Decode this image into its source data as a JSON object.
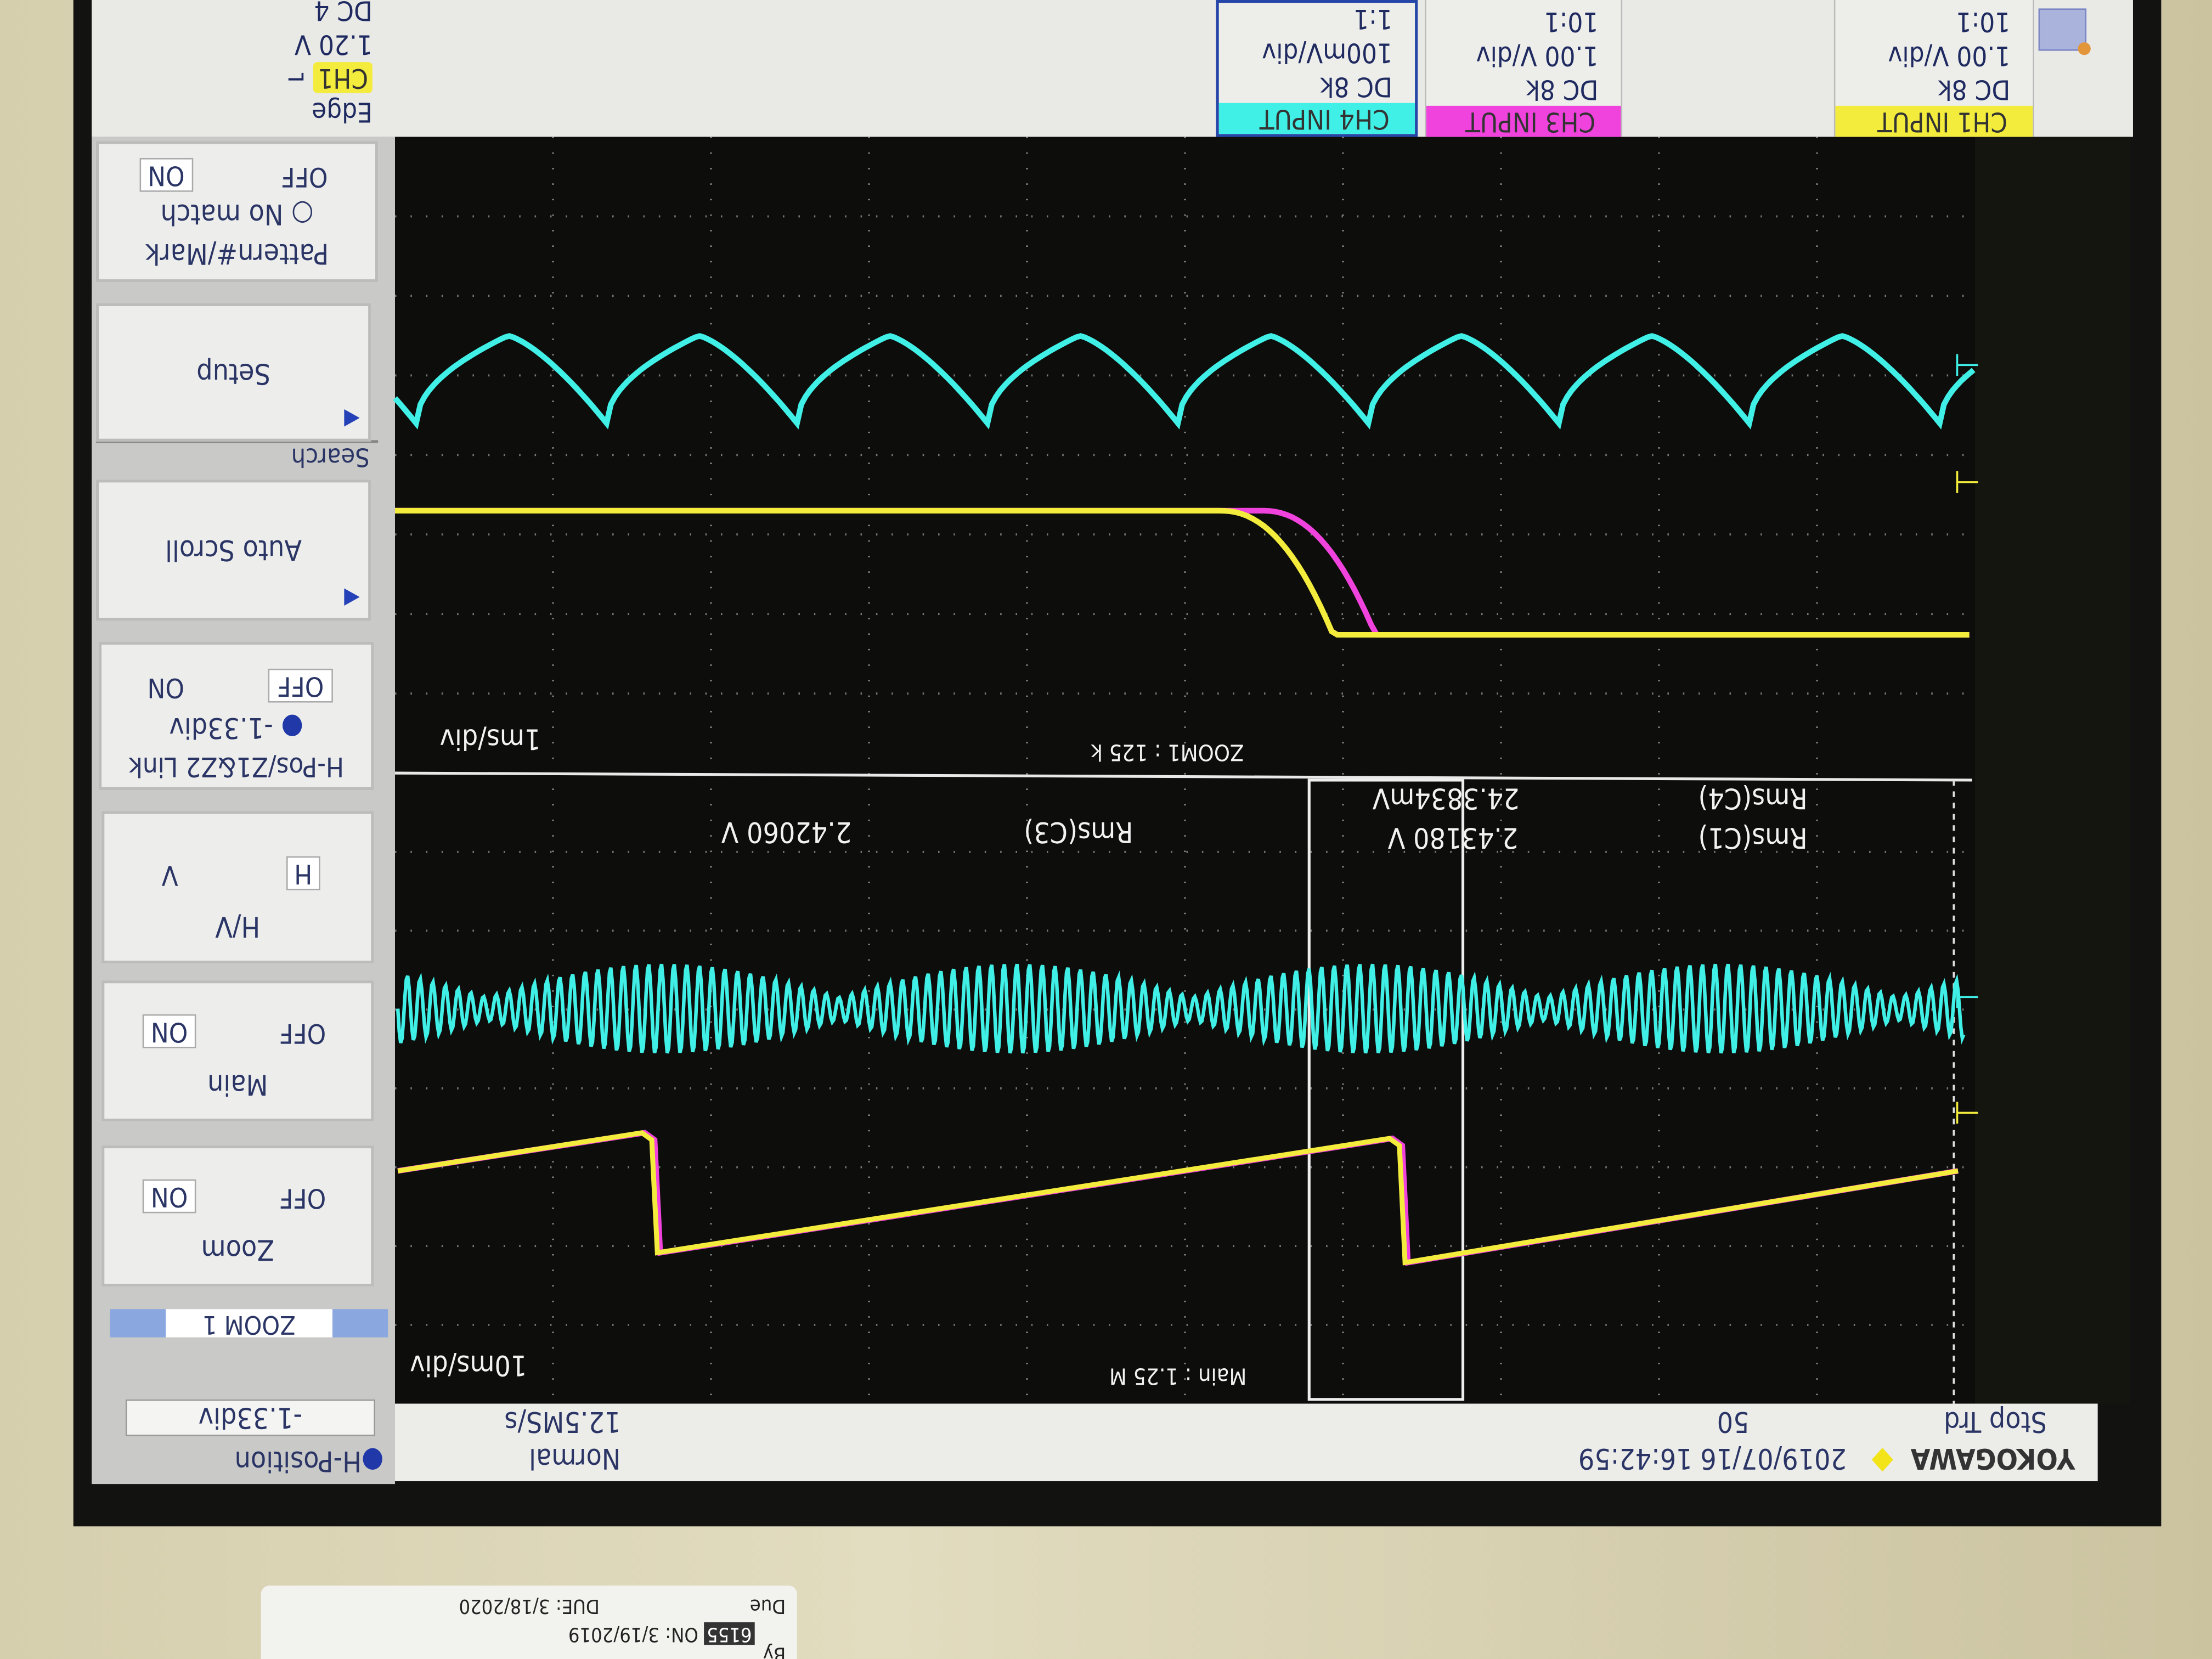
{
  "channels": [
    {
      "label": "CH1 INPUT",
      "coupling": "DC 8k",
      "scale": "1.00 V/div",
      "probe": "10:1",
      "color": "#f4ec3c"
    },
    {
      "label": "CH3 INPUT",
      "coupling": "DC 8k",
      "scale": "1.00 V/div",
      "probe": "10:1",
      "color": "#f042dc"
    },
    {
      "label": "CH4 INPUT",
      "coupling": "DC 8k",
      "scale": "100mV/div",
      "probe": "1:1",
      "color": "#40f0e6"
    }
  ],
  "trigger": {
    "type": "Edge",
    "source": "CH1",
    "level": "1.20 V",
    "coupling": "DC 4"
  },
  "softkeys": {
    "hposition": {
      "label": "H-Position",
      "value": "-1.33div"
    },
    "zoom_header": "ZOOM 1",
    "zoom": {
      "label": "Zoom",
      "off": "OFF",
      "on": "ON"
    },
    "main": {
      "label": "Main",
      "off": "OFF",
      "on": "ON"
    },
    "hv": {
      "label": "H/V",
      "h": "H",
      "v": "V"
    },
    "link": {
      "label": "H-Pos/Z1&Z2 Link",
      "value": "-1.33div",
      "off": "OFF",
      "on": "ON"
    },
    "autoscroll": {
      "label": "Auto Scroll"
    },
    "search_header": "Search",
    "setup": {
      "label": "Setup"
    },
    "pattern": {
      "label": "Pattern#/Mark",
      "value": "No match",
      "off": "OFF",
      "on": "ON"
    }
  },
  "status": {
    "brand": "YOKOGAWA",
    "datetime": "2019/07/16 16:42:59",
    "state": "Stop Trd",
    "count": "50",
    "mode": "Normal",
    "sample_rate": "12.5MS/s"
  },
  "zoom_window": {
    "label": "ZOOM1 : 125 k",
    "timebase": "1ms/div"
  },
  "main_window": {
    "label": "Main : 1.25 M",
    "timebase": "10ms/div"
  },
  "measurements": [
    {
      "label": "Rms(C1)",
      "value": "2.43180 V"
    },
    {
      "label": "Rms(C4)",
      "value": "24.3834mV"
    },
    {
      "label": "Rms(C3)",
      "value": "2.42060 V"
    }
  ],
  "sticker": {
    "due_label": "Due",
    "due": "DUE: 3/18/2020",
    "on": "ON: 3/19/2019",
    "id": "6155",
    "by": "By"
  }
}
